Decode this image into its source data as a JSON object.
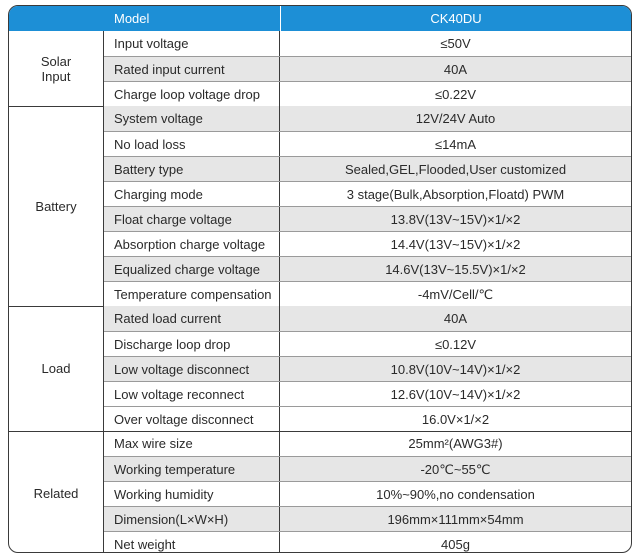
{
  "header": {
    "model_label": "Model",
    "model_value": "CK40DU"
  },
  "groups": [
    {
      "label": "Solar\nInput",
      "rows": [
        {
          "param": "Input voltage",
          "value": "≤50V"
        },
        {
          "param": "Rated input current",
          "value": "40A"
        },
        {
          "param": "Charge loop voltage drop",
          "value": "≤0.22V"
        }
      ]
    },
    {
      "label": "Battery",
      "rows": [
        {
          "param": "System voltage",
          "value": "12V/24V Auto"
        },
        {
          "param": "No load loss",
          "value": "≤14mA"
        },
        {
          "param": "Battery type",
          "value": "Sealed,GEL,Flooded,User customized"
        },
        {
          "param": "Charging mode",
          "value": "3 stage(Bulk,Absorption,Floatd) PWM"
        },
        {
          "param": "Float charge voltage",
          "value": "13.8V(13V~15V)×1/×2"
        },
        {
          "param": "Absorption charge voltage",
          "value": "14.4V(13V~15V)×1/×2"
        },
        {
          "param": "Equalized charge voltage",
          "value": "14.6V(13V~15.5V)×1/×2"
        },
        {
          "param": "Temperature compensation",
          "value": "-4mV/Cell/℃"
        }
      ]
    },
    {
      "label": "Load",
      "rows": [
        {
          "param": "Rated load current",
          "value": "40A"
        },
        {
          "param": "Discharge loop drop",
          "value": "≤0.12V"
        },
        {
          "param": "Low voltage disconnect",
          "value": "10.8V(10V~14V)×1/×2"
        },
        {
          "param": "Low voltage reconnect",
          "value": "12.6V(10V~14V)×1/×2"
        },
        {
          "param": "Over voltage disconnect",
          "value": "16.0V×1/×2"
        }
      ]
    },
    {
      "label": "Related",
      "rows": [
        {
          "param": "Max wire size",
          "value": "25mm²(AWG3#)"
        },
        {
          "param": "Working temperature",
          "value": "-20℃~55℃"
        },
        {
          "param": "Working humidity",
          "value": "10%~90%,no condensation"
        },
        {
          "param": "Dimension(L×W×H)",
          "value": "196mm×111mm×54mm"
        },
        {
          "param": "Net weight",
          "value": "405g"
        }
      ]
    }
  ]
}
